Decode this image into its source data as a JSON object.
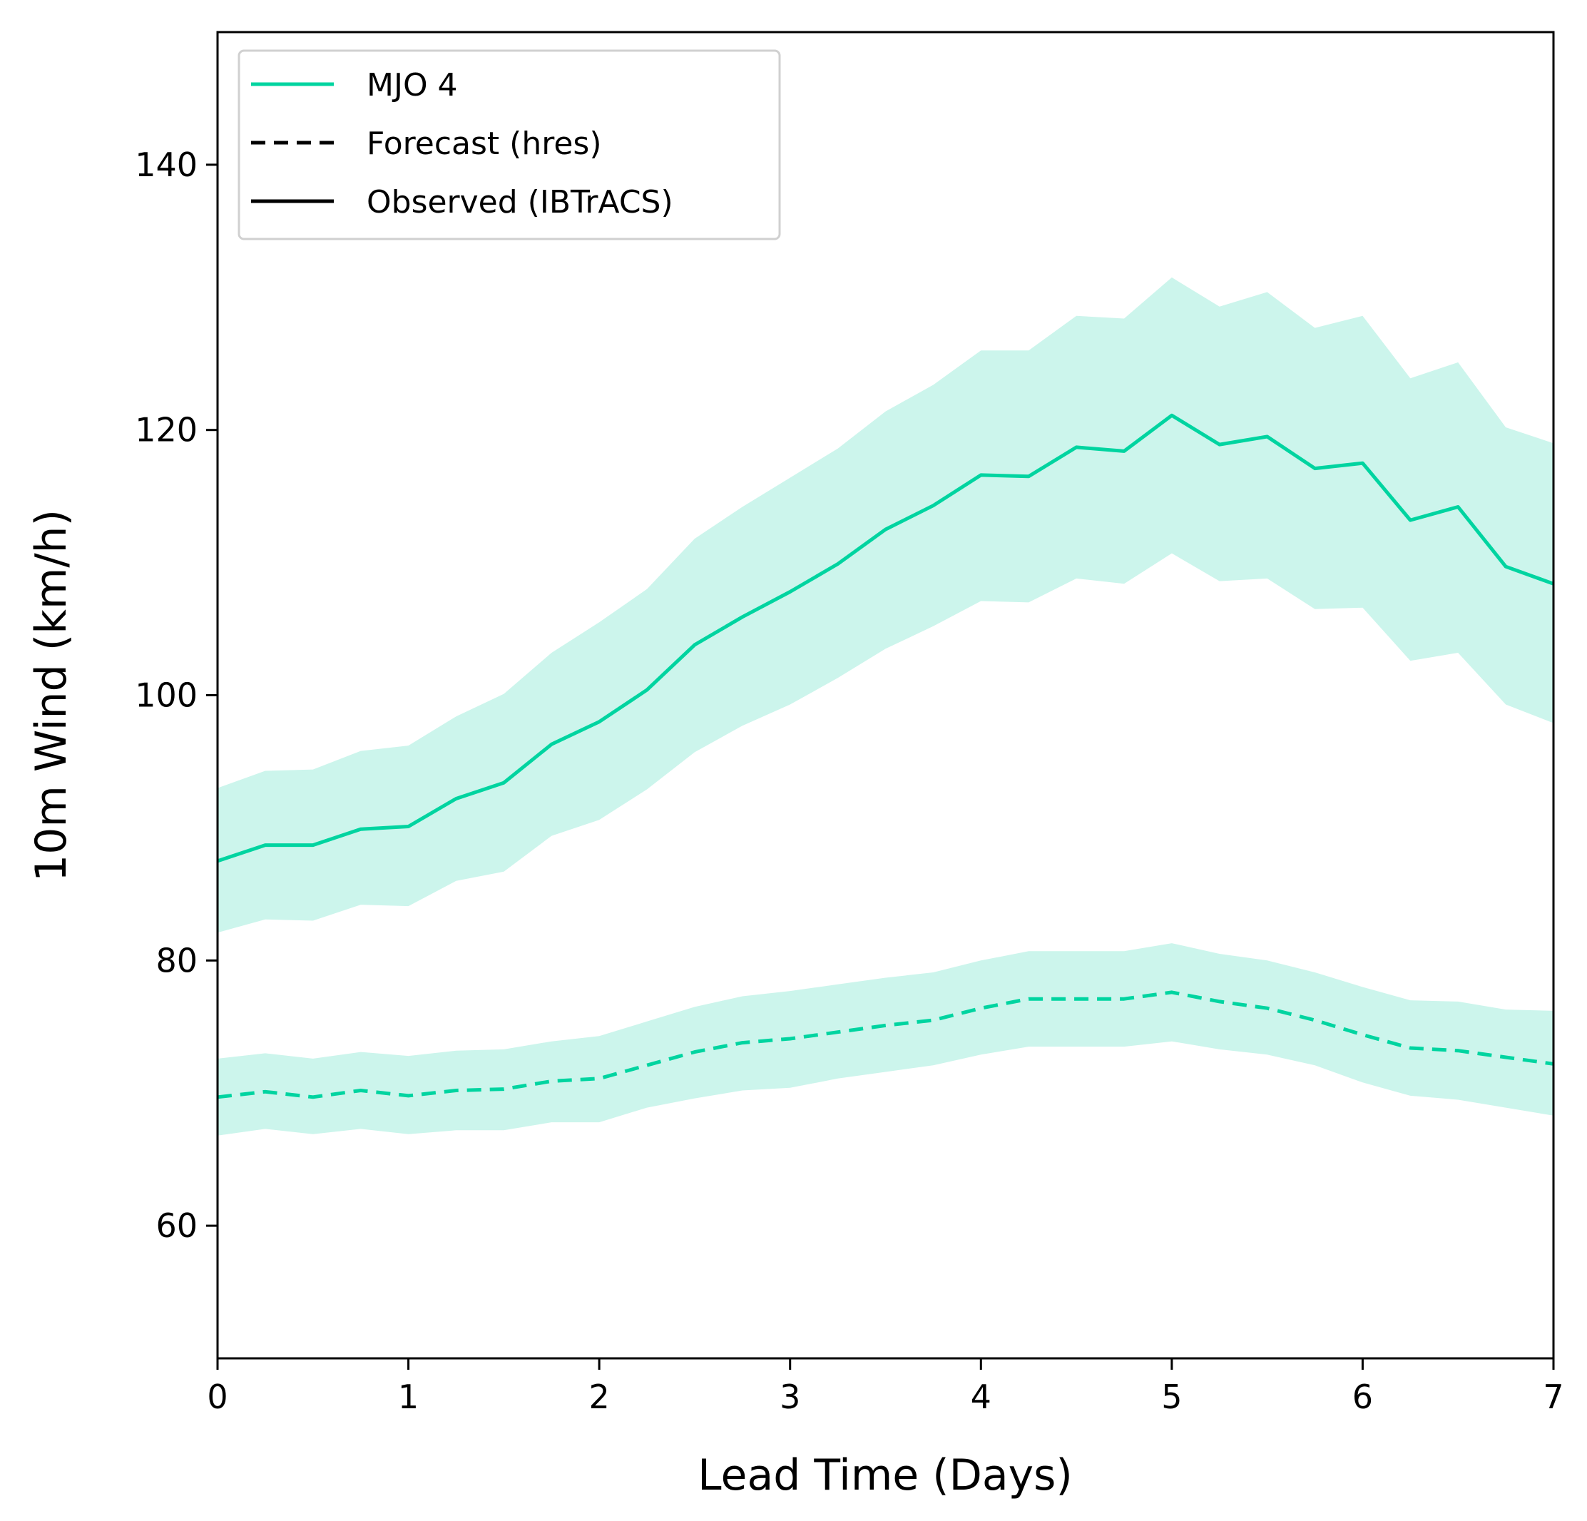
{
  "chart_data": {
    "type": "line",
    "xlabel": "Lead Time (Days)",
    "ylabel": "10m Wind (km/h)",
    "xlim": [
      0,
      7
    ],
    "ylim": [
      50,
      150
    ],
    "xticks": [
      "0",
      "1",
      "2",
      "3",
      "4",
      "5",
      "6",
      "7"
    ],
    "yticks": [
      "60",
      "80",
      "100",
      "120",
      "140"
    ],
    "grid": false,
    "legend_position": "top-left",
    "legend": [
      {
        "label": "MJO 4",
        "style": "solid",
        "color": "#00d4a0"
      },
      {
        "label": "Forecast (hres)",
        "style": "dashed",
        "color": "#000000"
      },
      {
        "label": "Observed (IBTrACS)",
        "style": "solid",
        "color": "#000000"
      }
    ],
    "colors": {
      "line": "#00d4a0",
      "band": "#ccf5ec"
    },
    "x": [
      0,
      0.25,
      0.5,
      0.75,
      1,
      1.25,
      1.5,
      1.75,
      2,
      2.25,
      2.5,
      2.75,
      3,
      3.25,
      3.5,
      3.75,
      4,
      4.25,
      4.5,
      4.75,
      5,
      5.25,
      5.5,
      5.75,
      6,
      6.25,
      6.5,
      6.75,
      7
    ],
    "series": [
      {
        "kind": "observed",
        "style": "solid",
        "values": [
          87.5,
          88.7,
          88.7,
          89.9,
          90.1,
          92.2,
          93.4,
          96.3,
          98.0,
          100.4,
          103.8,
          105.9,
          107.8,
          109.9,
          112.5,
          114.3,
          116.6,
          116.5,
          118.7,
          118.4,
          121.1,
          118.9,
          119.5,
          117.1,
          117.5,
          113.2,
          114.2,
          109.7,
          108.4
        ],
        "lower": [
          82.1,
          83.1,
          83.0,
          84.2,
          84.1,
          86.0,
          86.7,
          89.4,
          90.6,
          92.9,
          95.7,
          97.7,
          99.3,
          101.3,
          103.5,
          105.2,
          107.1,
          107.0,
          108.8,
          108.4,
          110.7,
          108.6,
          108.8,
          106.5,
          106.6,
          102.6,
          103.2,
          99.3,
          97.9
        ],
        "upper": [
          93.0,
          94.3,
          94.4,
          95.8,
          96.2,
          98.4,
          100.1,
          103.2,
          105.5,
          108.0,
          111.8,
          114.2,
          116.4,
          118.6,
          121.4,
          123.4,
          126.0,
          126.0,
          128.6,
          128.4,
          131.5,
          129.3,
          130.4,
          127.7,
          128.6,
          123.9,
          125.1,
          120.2,
          119.0
        ]
      },
      {
        "kind": "forecast",
        "style": "dashed",
        "values": [
          69.7,
          70.1,
          69.7,
          70.2,
          69.8,
          70.2,
          70.3,
          70.9,
          71.1,
          72.1,
          73.1,
          73.8,
          74.1,
          74.6,
          75.1,
          75.5,
          76.4,
          77.1,
          77.1,
          77.1,
          77.6,
          76.9,
          76.4,
          75.5,
          74.4,
          73.4,
          73.2,
          72.7,
          72.2
        ],
        "lower": [
          66.8,
          67.3,
          66.9,
          67.3,
          66.9,
          67.2,
          67.2,
          67.8,
          67.8,
          68.9,
          69.6,
          70.2,
          70.4,
          71.1,
          71.6,
          72.1,
          72.9,
          73.5,
          73.5,
          73.5,
          73.9,
          73.3,
          72.9,
          72.1,
          70.8,
          69.8,
          69.5,
          68.9,
          68.3
        ],
        "upper": [
          72.6,
          73.0,
          72.6,
          73.1,
          72.8,
          73.2,
          73.3,
          73.9,
          74.3,
          75.4,
          76.5,
          77.3,
          77.7,
          78.2,
          78.7,
          79.1,
          80.0,
          80.7,
          80.7,
          80.7,
          81.3,
          80.5,
          80.0,
          79.1,
          78.0,
          77.0,
          76.9,
          76.3,
          76.2
        ]
      }
    ]
  }
}
